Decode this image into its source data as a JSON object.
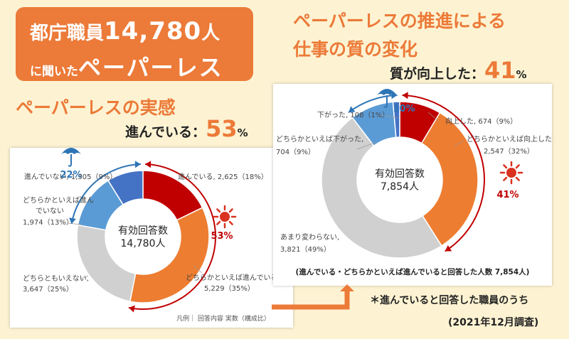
{
  "title": {
    "line1_prefix": "都庁職員",
    "line1_number": "14,780",
    "line1_suffix": "人",
    "line2_prefix": "に聞いた",
    "line2_main": "ペーパーレス"
  },
  "right_heading": {
    "line1": "ペーパーレスの推進による",
    "line2": "仕事の質の変化",
    "stat_label": "質が向上した：",
    "stat_value": "41",
    "stat_unit": "%"
  },
  "left_heading": {
    "title": "ペーパーレスの実感",
    "stat_label": "進んでいる：",
    "stat_value": "53",
    "stat_unit": "%"
  },
  "footnote_under_right": "(進んでいる・どちらかといえば進んでいると回答した人数 7,854人)",
  "footnote_arrow": "＊進んでいると回答した職員のうち",
  "survey_date": "(2021年12月調査)",
  "legend_left": "凡例｜ 回答内容 実数（構成比）",
  "colors": {
    "dark_red": "#c00000",
    "orange": "#ed7d31",
    "gray": "#d0d0d0",
    "light_blue": "#5b9bd5",
    "blue": "#4472c4",
    "sun": "#d9321f",
    "umbrella": "#2e75b6"
  },
  "chart_data": [
    {
      "type": "pie",
      "center_label_1": "有効回答数",
      "center_label_2": "14,780人",
      "slices": [
        {
          "label": "進んでいる, 2,625（18%）",
          "value": 2625,
          "color": "#c00000"
        },
        {
          "label": "どちらかといえば進んでいる, 5,229（35%）",
          "value": 5229,
          "color": "#ed7d31"
        },
        {
          "label": "どちらともいえない, 3,647（25%）",
          "value": 3647,
          "color": "#d0d0d0"
        },
        {
          "label": "どちらかといえば進んでいない, 1,974（13%）",
          "value": 1974,
          "color": "#5b9bd5"
        },
        {
          "label": "進んでいない, 1,305（9%）",
          "value": 1305,
          "color": "#4472c4"
        }
      ],
      "positive_pct": "53%",
      "negative_pct": "22%"
    },
    {
      "type": "pie",
      "center_label_1": "有効回答数",
      "center_label_2": "7,854人",
      "slices": [
        {
          "label": "向上した, 674（9%）",
          "value": 674,
          "color": "#c00000"
        },
        {
          "label": "どちらかといえば向上した 2,547（32%）",
          "value": 2547,
          "color": "#ed7d31"
        },
        {
          "label": "あまり変わらない, 3,821（49%）",
          "value": 3821,
          "color": "#d0d0d0"
        },
        {
          "label": "どちらかといえば下がった, 704（9%）",
          "value": 704,
          "color": "#5b9bd5"
        },
        {
          "label": "下がった, 108（1%）",
          "value": 108,
          "color": "#4472c4"
        }
      ],
      "positive_pct": "41%",
      "negative_pct": "10%"
    }
  ]
}
